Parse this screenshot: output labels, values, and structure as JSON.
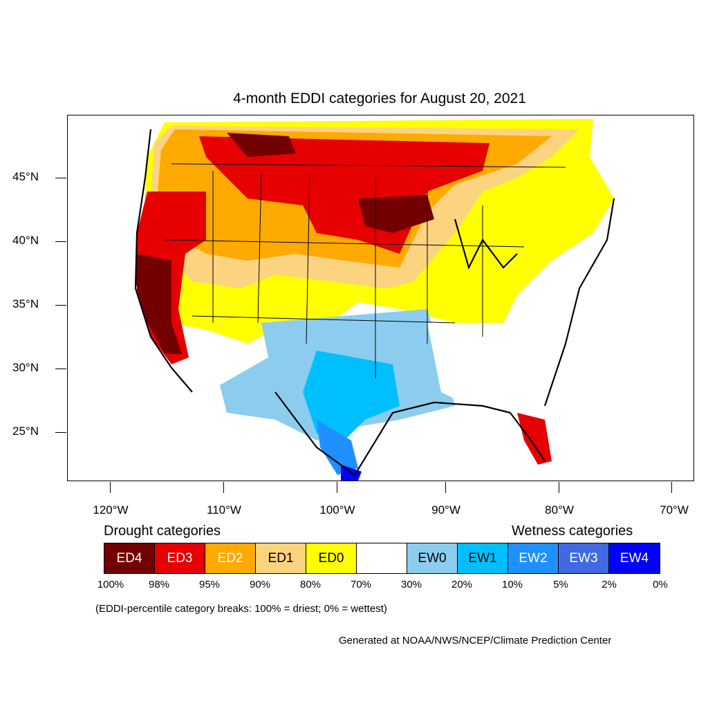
{
  "title": "4-month EDDI categories for August 20, 2021",
  "latitude_labels": [
    "45°N",
    "40°N",
    "35°N",
    "30°N",
    "25°N"
  ],
  "longitude_labels": [
    "120°W",
    "110°W",
    "100°W",
    "90°W",
    "80°W",
    "70°W"
  ],
  "legend": {
    "drought_heading": "Drought categories",
    "wetness_heading": "Wetness categories",
    "categories": [
      {
        "label": "ED4",
        "color": "#730000",
        "text_color": "#ffffff"
      },
      {
        "label": "ED3",
        "color": "#e60000",
        "text_color": "#ffffff"
      },
      {
        "label": "ED2",
        "color": "#ffaa00",
        "text_color": "#ffffff"
      },
      {
        "label": "ED1",
        "color": "#fcd37f",
        "text_color": "#000000"
      },
      {
        "label": "ED0",
        "color": "#ffff00",
        "text_color": "#000000"
      },
      {
        "label": "",
        "color": "#ffffff",
        "text_color": "#000000"
      },
      {
        "label": "EW0",
        "color": "#8ccdef",
        "text_color": "#000000"
      },
      {
        "label": "EW1",
        "color": "#00bfff",
        "text_color": "#000000"
      },
      {
        "label": "EW2",
        "color": "#1e90ff",
        "text_color": "#ffffff"
      },
      {
        "label": "EW3",
        "color": "#4169e1",
        "text_color": "#ffffff"
      },
      {
        "label": "EW4",
        "color": "#0000ff",
        "text_color": "#ffffff"
      }
    ],
    "percentile_breaks": [
      "100%",
      "98%",
      "95%",
      "90%",
      "80%",
      "70%",
      "30%",
      "20%",
      "10%",
      "5%",
      "2%",
      "0%"
    ]
  },
  "note": "(EDDI-percentile category breaks: 100% = driest; 0% = wettest)",
  "credit": "Generated at NOAA/NWS/NCEP/Climate Prediction Center"
}
